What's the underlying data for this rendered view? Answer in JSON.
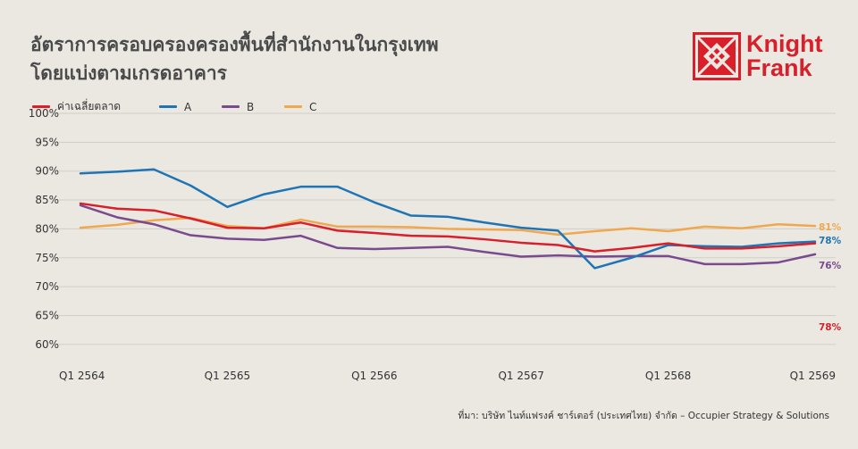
{
  "title": {
    "line1": "อัตราการครอบครองครองพื้นที่สำนักงานในกรุงเทพ",
    "line2": "โดยแบ่งตามเกรดอาคาร"
  },
  "logo": {
    "line1": "Knight",
    "line2": "Frank",
    "color": "#d81f2a"
  },
  "source": "ที่มา: บริษัท ไนท์แฟรงค์ ชาร์เตอร์ (ประเทศไทย) จำกัด – Occupier Strategy & Solutions",
  "chart_data": {
    "type": "line",
    "title": "อัตราการครอบครองครองพื้นที่สำนักงานในกรุงเทพ โดยแบ่งตามเกรดอาคาร",
    "xlabel": "",
    "ylabel": "",
    "x_tick_labels": [
      "Q1 2564",
      "Q1 2565",
      "Q1 2566",
      "Q1 2567",
      "Q1 2568",
      "Q1 2569"
    ],
    "y_tick_labels": [
      "60%",
      "65%",
      "70%",
      "75%",
      "80%",
      "85%",
      "90%",
      "95%",
      "100%"
    ],
    "y_ticks": [
      60,
      65,
      70,
      75,
      80,
      85,
      90,
      95,
      100
    ],
    "ylim": [
      57.5,
      100
    ],
    "x_range": [
      0,
      20
    ],
    "grid": true,
    "legend_position": "top-left",
    "series": [
      {
        "name": "ค่าเฉลี่ยตลาด",
        "color": "#d81f2a",
        "end_label": "78%",
        "values": [
          84.4,
          83.5,
          83.2,
          81.8,
          80.2,
          80.1,
          81.1,
          79.7,
          79.3,
          78.8,
          78.7,
          78.2,
          77.6,
          77.2,
          76.1,
          76.7,
          77.5,
          76.6,
          76.6,
          77.0,
          77.5
        ]
      },
      {
        "name": "A",
        "color": "#1f74b4",
        "end_label": "78%",
        "values": [
          89.6,
          89.9,
          90.3,
          87.5,
          83.8,
          86.0,
          87.3,
          87.3,
          84.6,
          82.3,
          82.1,
          81.1,
          80.2,
          79.7,
          73.2,
          75.0,
          77.2,
          77.0,
          76.9,
          77.5,
          77.8
        ]
      },
      {
        "name": "B",
        "color": "#7a4a8e",
        "end_label": "76%",
        "values": [
          84.1,
          82.0,
          80.8,
          78.9,
          78.3,
          78.1,
          78.8,
          76.7,
          76.5,
          76.7,
          76.9,
          76.0,
          75.2,
          75.4,
          75.2,
          75.3,
          75.3,
          73.9,
          73.9,
          74.2,
          75.6
        ]
      },
      {
        "name": "C",
        "color": "#f0a850",
        "end_label": "81%",
        "values": [
          80.2,
          80.7,
          81.5,
          81.9,
          80.5,
          80.1,
          81.6,
          80.4,
          80.4,
          80.3,
          80.0,
          79.9,
          79.8,
          79.0,
          79.6,
          80.1,
          79.6,
          80.4,
          80.1,
          80.8,
          80.5
        ]
      }
    ]
  }
}
